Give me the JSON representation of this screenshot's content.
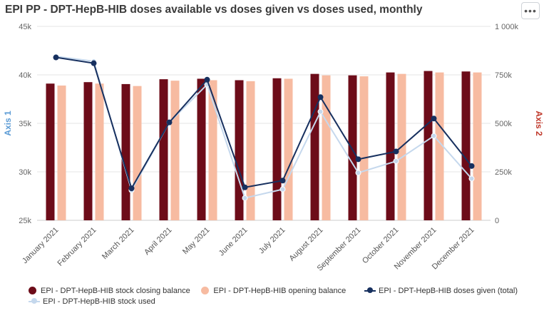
{
  "header": {
    "title": "EPI PP - DPT-HepB-HIB doses available vs doses given vs doses used, monthly",
    "menu_icon": "ellipsis-icon",
    "menu_label": "•••"
  },
  "chart_data": {
    "type": "bar",
    "title": "EPI PP - DPT-HepB-HIB doses available vs doses given vs doses used, monthly",
    "categories": [
      "January 2021",
      "February 2021",
      "March 2021",
      "April 2021",
      "May 2021",
      "June 2021",
      "July 2021",
      "August 2021",
      "September 2021",
      "October 2021",
      "November 2021",
      "December 2021"
    ],
    "y_left": {
      "label": "Axis 1",
      "ylim": [
        25000,
        45000
      ],
      "ticks": [
        "25k",
        "30k",
        "35k",
        "40k",
        "45k"
      ],
      "tick_values": [
        25000,
        30000,
        35000,
        40000,
        45000
      ],
      "color": "#5b9bd5"
    },
    "y_right": {
      "label": "Axis 2",
      "ylim": [
        0,
        1000000
      ],
      "ticks": [
        "0",
        "250k",
        "500k",
        "750k",
        "1 000k"
      ],
      "tick_values": [
        0,
        250000,
        500000,
        750000,
        1000000
      ],
      "color": "#c0392b"
    },
    "grid": true,
    "legend_position": "bottom",
    "series": [
      {
        "name": "EPI - DPT-HepB-HIB stock closing balance",
        "type": "bar",
        "axis": "left",
        "color": "#6d0c19",
        "values": [
          39100,
          39250,
          39050,
          39550,
          39600,
          39450,
          39650,
          40100,
          39950,
          40250,
          40400,
          40350
        ]
      },
      {
        "name": "EPI - DPT-HepB-HIB opening balance",
        "type": "bar",
        "axis": "left",
        "color": "#f7bba1",
        "values": [
          38900,
          39100,
          38850,
          39400,
          39450,
          39350,
          39600,
          39950,
          39850,
          40100,
          40250,
          40250
        ]
      },
      {
        "name": "EPI - DPT-HepB-HIB doses given (total)",
        "type": "line",
        "axis": "right",
        "color": "#17305f",
        "values": [
          840000,
          810000,
          165000,
          505000,
          725000,
          170000,
          205000,
          635000,
          315000,
          355000,
          525000,
          280000
        ]
      },
      {
        "name": "EPI - DPT-HepB-HIB stock used",
        "type": "line",
        "axis": "right",
        "color": "#c5d8ed",
        "values": [
          845000,
          820000,
          155000,
          505000,
          700000,
          115000,
          160000,
          560000,
          245000,
          305000,
          435000,
          215000
        ]
      }
    ]
  }
}
